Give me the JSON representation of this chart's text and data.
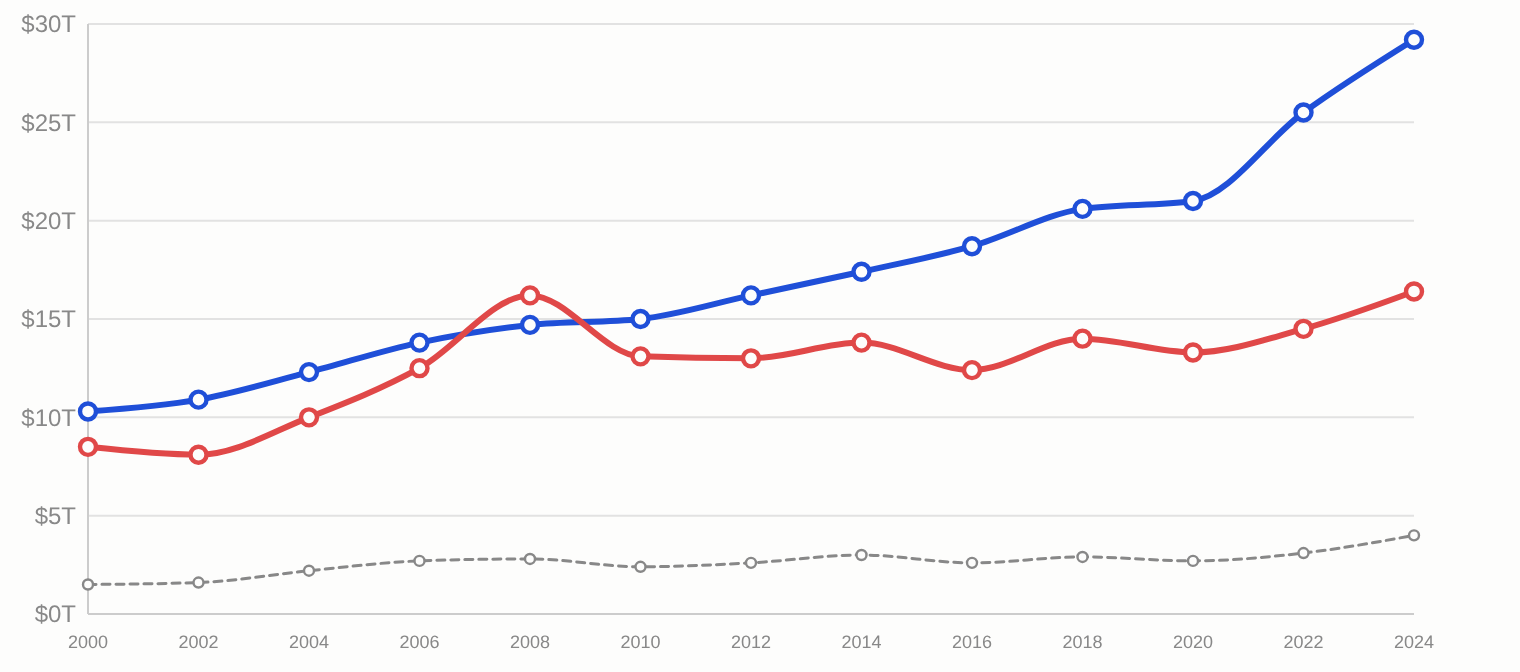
{
  "chart_data": {
    "type": "line",
    "x": [
      2000,
      2002,
      2004,
      2006,
      2008,
      2010,
      2012,
      2014,
      2016,
      2018,
      2020,
      2022,
      2024
    ],
    "xlim": [
      2000,
      2024
    ],
    "xticks": [
      2000,
      2002,
      2004,
      2006,
      2008,
      2010,
      2012,
      2014,
      2016,
      2018,
      2020,
      2022,
      2024
    ],
    "ylim": [
      0,
      30
    ],
    "yticks": [
      {
        "value": 0,
        "label": "$0T"
      },
      {
        "value": 5,
        "label": "$5T"
      },
      {
        "value": 10,
        "label": "$10T"
      },
      {
        "value": 15,
        "label": "$15T"
      },
      {
        "value": 20,
        "label": "$20T"
      },
      {
        "value": 25,
        "label": "$25T"
      },
      {
        "value": 30,
        "label": "$30T"
      }
    ],
    "grid": "y",
    "marker": "circle",
    "series": [
      {
        "color": "#1f4fd8",
        "line_style": "solid",
        "values": [
          10.3,
          10.9,
          12.3,
          13.8,
          14.7,
          15.0,
          16.2,
          17.4,
          18.7,
          20.6,
          21.0,
          25.5,
          29.2
        ]
      },
      {
        "color": "#e04848",
        "line_style": "solid",
        "values": [
          8.5,
          8.1,
          10.0,
          12.5,
          16.2,
          13.1,
          13.0,
          13.8,
          12.4,
          14.0,
          13.3,
          14.5,
          16.4
        ]
      },
      {
        "color": "#888888",
        "line_style": "dashed",
        "values": [
          1.5,
          1.6,
          2.2,
          2.7,
          2.8,
          2.4,
          2.6,
          3.0,
          2.6,
          2.9,
          2.7,
          3.1,
          4.0
        ]
      }
    ]
  }
}
